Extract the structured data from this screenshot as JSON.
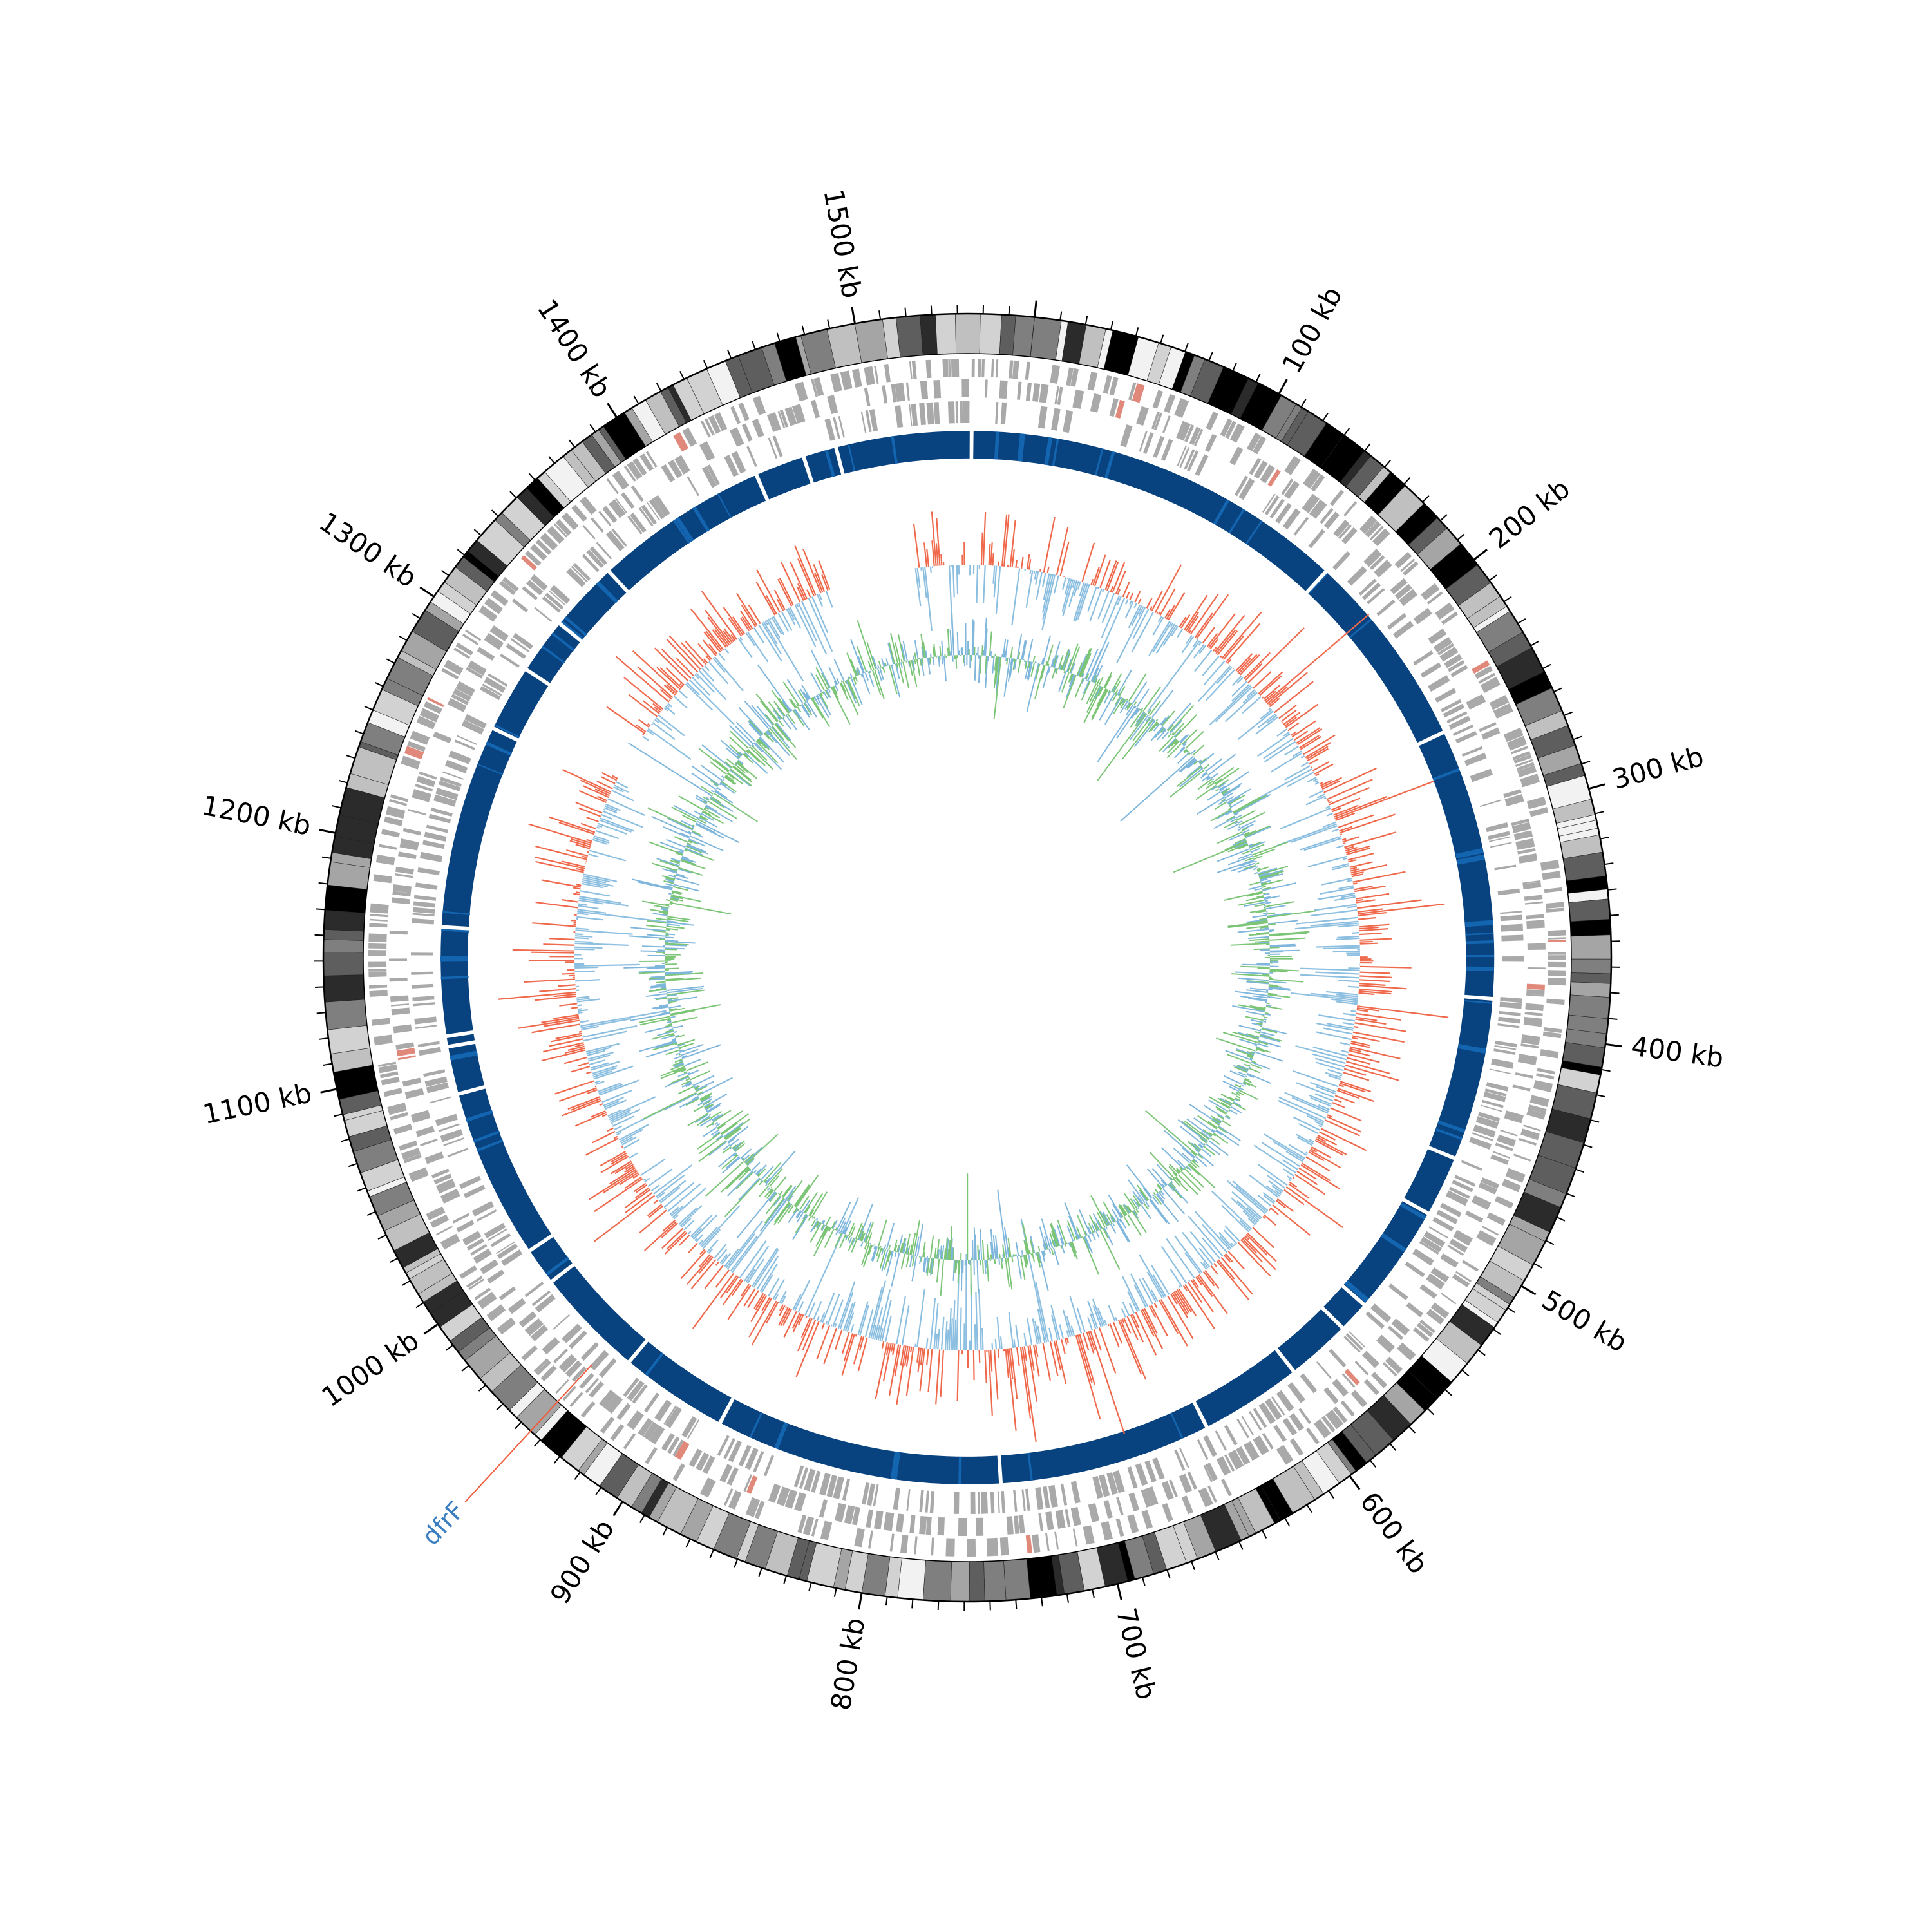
{
  "genome": {
    "length_kb": 1570,
    "origin_angle_deg": -84
  },
  "scale_labels": [
    {
      "kb": 100,
      "text": "100 kb"
    },
    {
      "kb": 200,
      "text": "200 kb"
    },
    {
      "kb": 300,
      "text": "300 kb"
    },
    {
      "kb": 400,
      "text": "400 kb"
    },
    {
      "kb": 500,
      "text": "500 kb"
    },
    {
      "kb": 600,
      "text": "600 kb"
    },
    {
      "kb": 700,
      "text": "700 kb"
    },
    {
      "kb": 800,
      "text": "800 kb"
    },
    {
      "kb": 900,
      "text": "900 kb"
    },
    {
      "kb": 1000,
      "text": "1000 kb"
    },
    {
      "kb": 1100,
      "text": "1100 kb"
    },
    {
      "kb": 1200,
      "text": "1200 kb"
    },
    {
      "kb": 1300,
      "text": "1300 kb"
    },
    {
      "kb": 1400,
      "text": "1400 kb"
    },
    {
      "kb": 1500,
      "text": "1500 kb"
    }
  ],
  "annotations": [
    {
      "label": "dfrF",
      "kb": 945,
      "label_color": "#3a7dc0",
      "line_color": "#ef5b3c"
    }
  ],
  "alignment_gaps_kb": [
    160,
    255,
    385,
    463,
    492,
    545,
    560,
    591,
    640,
    742,
    880,
    932,
    985,
    1003,
    1085,
    1108,
    1113,
    1165,
    1263,
    1295,
    1322,
    1356,
    1440,
    1464,
    1480,
    1545
  ],
  "colors": {
    "contig_shades": [
      "#000000",
      "#5e5e5e",
      "#a5a5a5",
      "#d2d2d2",
      "#f2f2f2",
      "#7f7f7f",
      "#2b2b2b",
      "#c0c0c0"
    ],
    "gene": "#a9a9a9",
    "gene_highlight": "#e0897a",
    "alignment": "#08427f",
    "alignment_light": "#1465b0",
    "plus": "#ef6a4d",
    "minus": "#8cbfe0",
    "gc_green": "#7cc577",
    "gc_blue": "#7fb6dc"
  }
}
